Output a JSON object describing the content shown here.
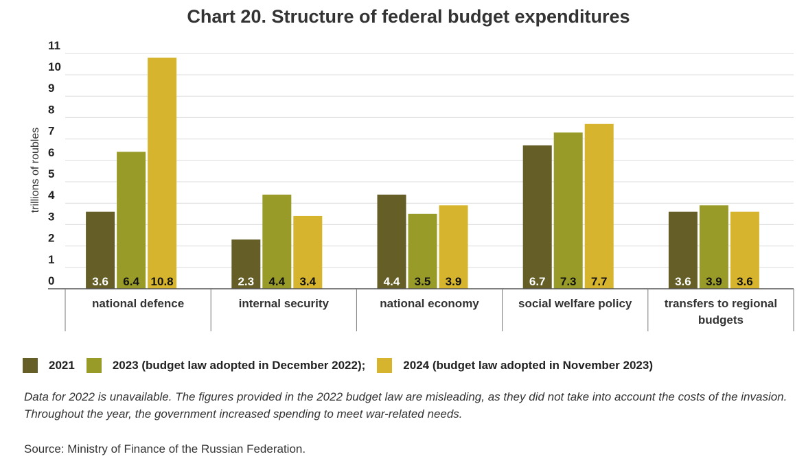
{
  "chart_data": {
    "type": "bar",
    "title": "Chart 20. Structure of federal budget expenditures",
    "ylabel": "trillions of roubles",
    "xlabel": "",
    "ylim": [
      0,
      11
    ],
    "yticks": [
      0,
      1,
      2,
      3,
      4,
      5,
      6,
      7,
      8,
      9,
      10,
      11
    ],
    "grid": true,
    "legend_position": "bottom-left",
    "categories": [
      "national defence",
      "internal security",
      "national economy",
      "social welfare policy",
      "transfers to regional budgets"
    ],
    "series": [
      {
        "name": "2021",
        "color": "#655e27",
        "label_color": "#ffffff",
        "values": [
          3.6,
          2.3,
          4.4,
          6.7,
          3.6
        ]
      },
      {
        "name": "2023 (budget law adopted in December 2022);",
        "color": "#999b28",
        "label_color": "#111111",
        "values": [
          6.4,
          4.4,
          3.5,
          7.3,
          3.9
        ]
      },
      {
        "name": "2024 (budget law adopted in November 2023)",
        "color": "#d7b42e",
        "label_color": "#111111",
        "values": [
          10.8,
          3.4,
          3.9,
          7.7,
          3.6
        ]
      }
    ]
  },
  "note": "Data for 2022 is unavailable. The figures provided in the 2022 budget law are misleading, as they did not take into account the costs of the invasion. Throughout the year, the government increased spending to meet war-related needs.",
  "source": "Source: Ministry of Finance of the Russian Federation."
}
